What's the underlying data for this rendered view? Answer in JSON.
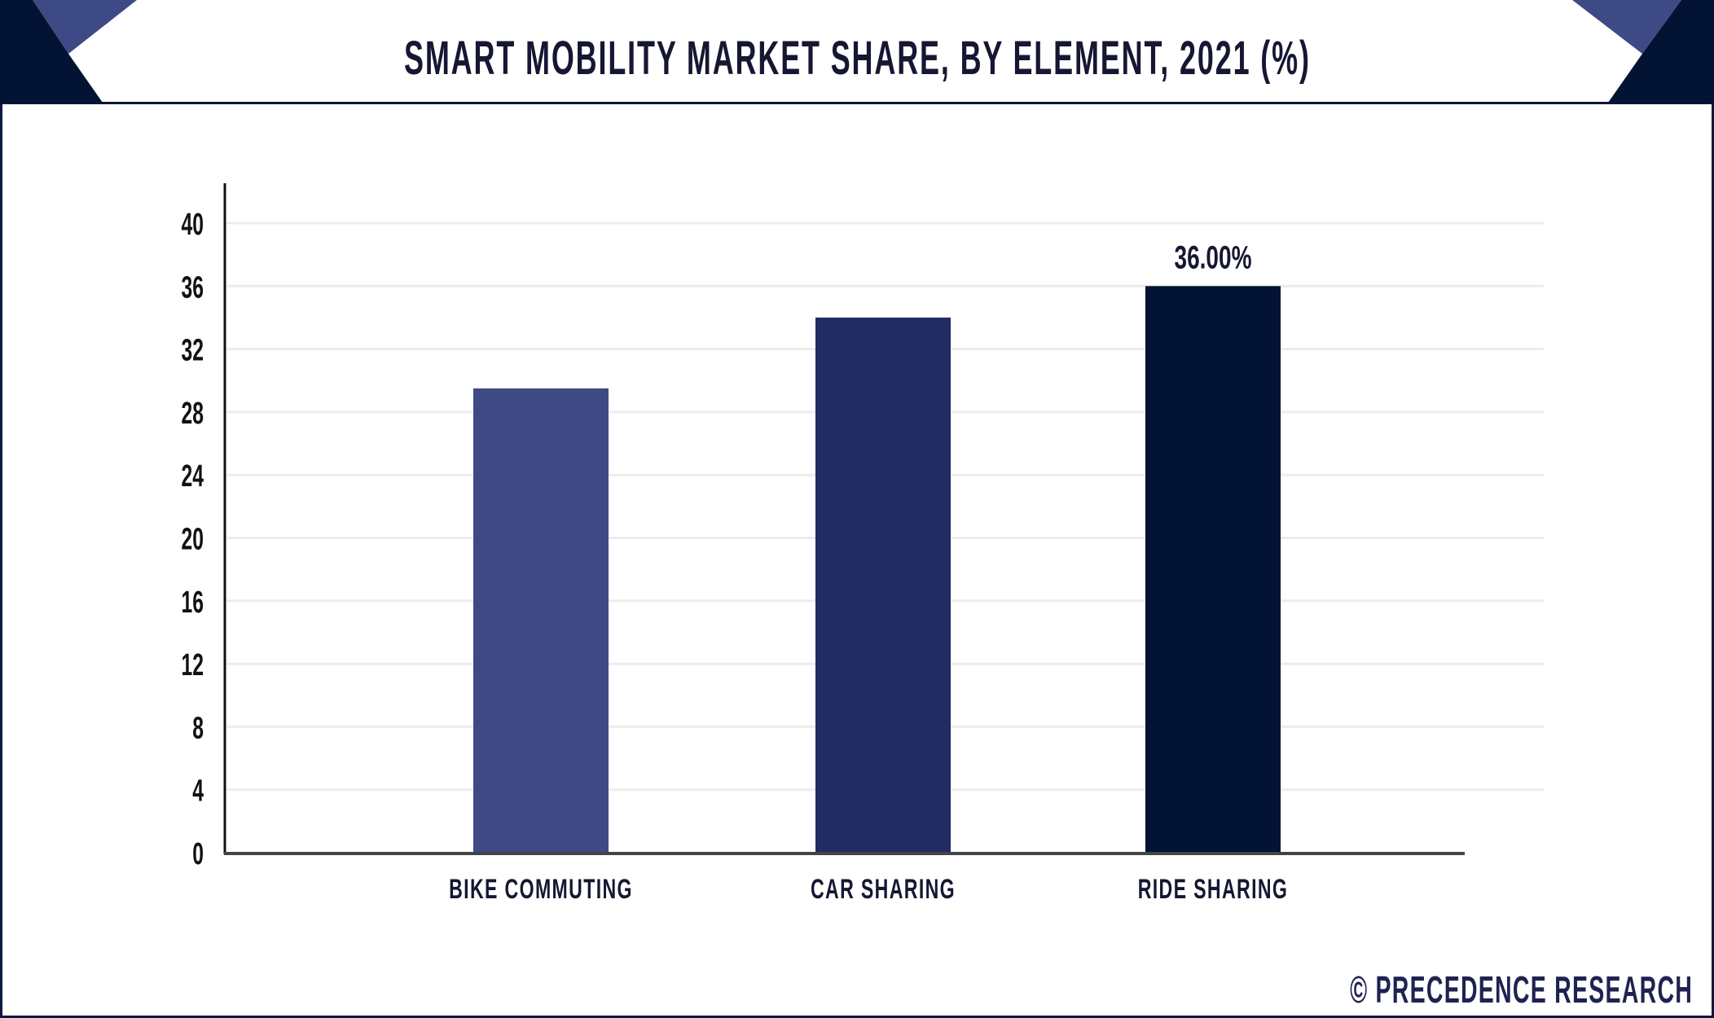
{
  "header": {
    "title": "SMART MOBILITY MARKET SHARE, BY ELEMENT, 2021 (%)"
  },
  "footer": {
    "copyright_icon": "©",
    "brand": "PRECEDENCE RESEARCH"
  },
  "colors": {
    "navy_dark": "#031333",
    "navy_blue": "#3e4a85",
    "bar_bike": "#3f4a84",
    "bar_car": "#222b64",
    "bar_ride": "#031333",
    "text": "#151733"
  },
  "chart_data": {
    "type": "bar",
    "title": "SMART MOBILITY MARKET SHARE, BY ELEMENT, 2021 (%)",
    "xlabel": "",
    "ylabel": "",
    "categories": [
      "BIKE COMMUTING",
      "CAR SHARING",
      "RIDE SHARING"
    ],
    "values": [
      29.5,
      34,
      36
    ],
    "data_labels": [
      "",
      "",
      "36.00%"
    ],
    "yticks": [
      0,
      4,
      8,
      12,
      16,
      20,
      24,
      28,
      32,
      36,
      40
    ],
    "ylim": [
      0,
      40
    ],
    "grid": true,
    "legend": "none"
  }
}
